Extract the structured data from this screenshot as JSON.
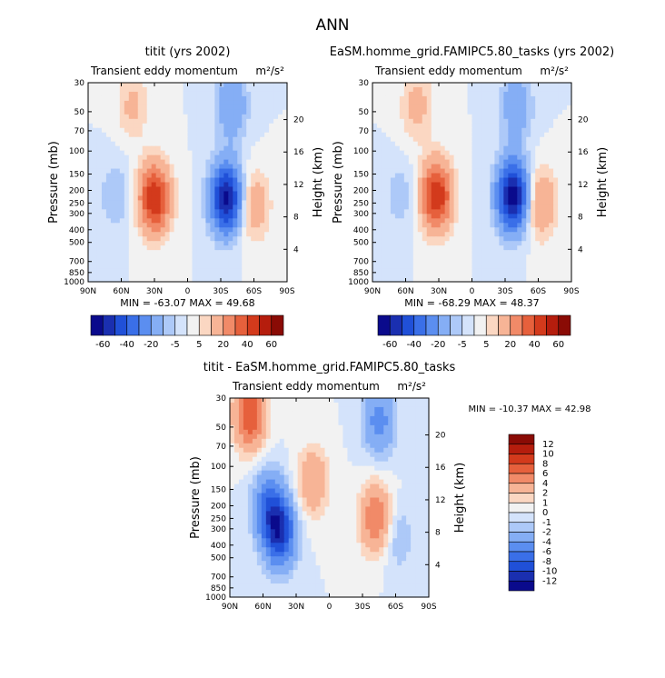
{
  "figure": {
    "title": "ANN",
    "colors": {
      "main": [
        "#0a0a8c",
        "#1a2fb0",
        "#2050d8",
        "#3a6fe8",
        "#5b8ef0",
        "#85aef5",
        "#adc9f8",
        "#d4e3fb",
        "#f2f2f2",
        "#fbd7c2",
        "#f7b496",
        "#f18a68",
        "#e6603c",
        "#d33a1c",
        "#b51d0d",
        "#8a0b05"
      ],
      "diff": [
        "#0a0a8c",
        "#1a2fb0",
        "#2050d8",
        "#3a6fe8",
        "#5b8ef0",
        "#85aef5",
        "#adc9f8",
        "#d4e3fb",
        "#f2f2f2",
        "#fbd7c2",
        "#f7b496",
        "#f18a68",
        "#e6603c",
        "#d33a1c",
        "#b51d0d",
        "#8a0b05"
      ]
    }
  },
  "chart_data": [
    {
      "type": "contour",
      "title": "titit (yrs 2002)",
      "subtitle_left": "Transient eddy momentum",
      "subtitle_right": "m²/s²",
      "xlabel": "",
      "ylabel": "Pressure (mb)",
      "ylabel_right": "Height (km)",
      "x_ticks": [
        "90N",
        "60N",
        "30N",
        "0",
        "30S",
        "60S",
        "90S"
      ],
      "y_ticks": [
        "30",
        "50",
        "70",
        "100",
        "150",
        "200",
        "250",
        "300",
        "400",
        "500",
        "700",
        "850",
        "1000"
      ],
      "y_ticks_right": [
        "20",
        "16",
        "12",
        "8",
        "4"
      ],
      "min_label": "MIN = -63.07",
      "max_label": "MAX =  49.68",
      "min": -63.07,
      "max": 49.68,
      "colorbar_labels": [
        "-60",
        "-40",
        "-20",
        "-5",
        "5",
        "20",
        "40",
        "60"
      ],
      "features": [
        {
          "lat": 30,
          "p": 230,
          "amp": 49.68
        },
        {
          "lat": -35,
          "p": 230,
          "amp": -63.07
        },
        {
          "lat": -60,
          "p": 260,
          "amp": 18
        },
        {
          "lat": 65,
          "p": 220,
          "amp": -10
        },
        {
          "lat": 50,
          "p": 45,
          "amp": 12
        },
        {
          "lat": -40,
          "p": 45,
          "amp": -20
        }
      ]
    },
    {
      "type": "contour",
      "title": "EaSM.homme_grid.FAMIPC5.80_tasks (yrs 2002)",
      "subtitle_left": "Transient eddy momentum",
      "subtitle_right": "m²/s²",
      "xlabel": "",
      "ylabel": "Pressure (mb)",
      "ylabel_right": "Height (km)",
      "x_ticks": [
        "90N",
        "60N",
        "30N",
        "0",
        "30S",
        "60S",
        "90S"
      ],
      "y_ticks": [
        "30",
        "50",
        "70",
        "100",
        "150",
        "200",
        "250",
        "300",
        "400",
        "500",
        "700",
        "850",
        "1000"
      ],
      "y_ticks_right": [
        "20",
        "16",
        "12",
        "8",
        "4"
      ],
      "min_label": "MIN = -68.29",
      "max_label": "MAX =  48.37",
      "min": -68.29,
      "max": 48.37,
      "colorbar_labels": [
        "-60",
        "-40",
        "-20",
        "-5",
        "5",
        "20",
        "40",
        "60"
      ],
      "features": [
        {
          "lat": 32,
          "p": 220,
          "amp": 48.37
        },
        {
          "lat": -37,
          "p": 220,
          "amp": -68.29
        },
        {
          "lat": -62,
          "p": 250,
          "amp": 22
        },
        {
          "lat": 65,
          "p": 220,
          "amp": -8
        },
        {
          "lat": 50,
          "p": 45,
          "amp": 14
        },
        {
          "lat": -40,
          "p": 45,
          "amp": -18
        }
      ]
    },
    {
      "type": "contour",
      "title": "titit - EaSM.homme_grid.FAMIPC5.80_tasks",
      "subtitle_left": "Transient eddy momentum",
      "subtitle_right": "m²/s²",
      "xlabel": "",
      "ylabel": "Pressure (mb)",
      "ylabel_right": "Height (km)",
      "x_ticks": [
        "90N",
        "60N",
        "30N",
        "0",
        "30S",
        "60S",
        "90S"
      ],
      "y_ticks": [
        "30",
        "50",
        "70",
        "100",
        "150",
        "200",
        "250",
        "300",
        "400",
        "500",
        "700",
        "850",
        "1000"
      ],
      "y_ticks_right": [
        "20",
        "16",
        "12",
        "8",
        "4"
      ],
      "min_label": "MIN = -10.37",
      "max_label": "MAX =  42.98",
      "min": -10.37,
      "max": 42.98,
      "colorbar_labels": [
        "12",
        "10",
        "8",
        "6",
        "4",
        "2",
        "1",
        "0",
        "-1",
        "-2",
        "-4",
        "-6",
        "-8",
        "-10",
        "-12"
      ],
      "features": [
        {
          "lat": 45,
          "p": 320,
          "amp": -10.37
        },
        {
          "lat": 55,
          "p": 200,
          "amp": -6
        },
        {
          "lat": 72,
          "p": 40,
          "amp": 8
        },
        {
          "lat": -42,
          "p": 250,
          "amp": 6
        },
        {
          "lat": 15,
          "p": 130,
          "amp": 4
        },
        {
          "lat": -45,
          "p": 45,
          "amp": -5
        },
        {
          "lat": -62,
          "p": 350,
          "amp": -2
        }
      ]
    }
  ]
}
